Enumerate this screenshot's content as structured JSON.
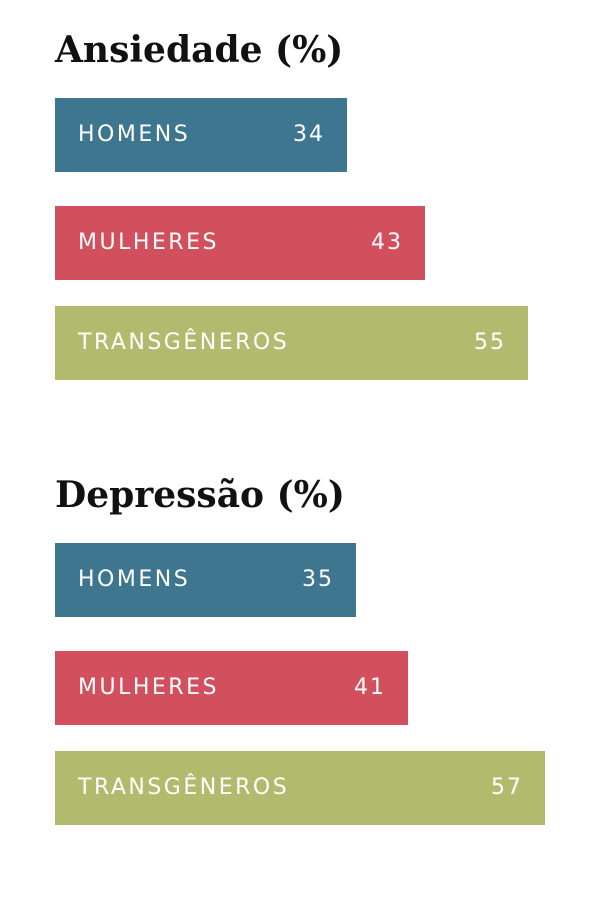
{
  "colors": {
    "homens": "#3e7690",
    "mulheres": "#d2505d",
    "transgeneros": "#b2bb6d"
  },
  "chart_data": [
    {
      "type": "bar",
      "orientation": "horizontal",
      "title": "Ansiedade (%)",
      "categories": [
        "HOMENS",
        "MULHERES",
        "TRANSGÊNEROS"
      ],
      "values": [
        34,
        43,
        55
      ],
      "colors": [
        "#3e7690",
        "#d2505d",
        "#b2bb6d"
      ],
      "xlim": [
        0,
        63
      ],
      "grid": false,
      "legend": "none"
    },
    {
      "type": "bar",
      "orientation": "horizontal",
      "title": "Depressão (%)",
      "categories": [
        "HOMENS",
        "MULHERES",
        "TRANSGÊNEROS"
      ],
      "values": [
        35,
        41,
        57
      ],
      "colors": [
        "#3e7690",
        "#d2505d",
        "#b2bb6d"
      ],
      "xlim": [
        0,
        63
      ],
      "grid": false,
      "legend": "none"
    }
  ]
}
